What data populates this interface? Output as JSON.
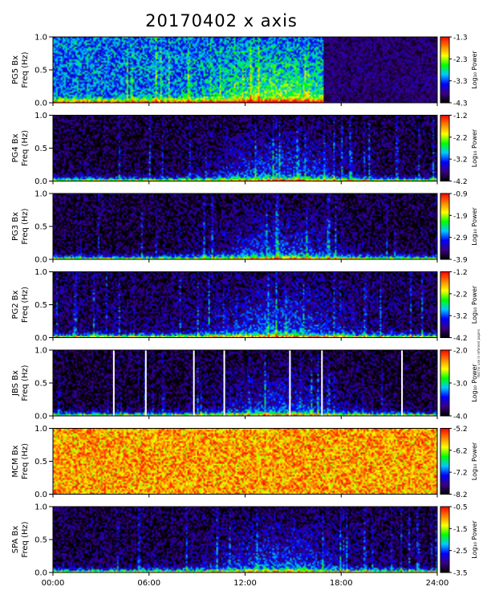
{
  "title": "20170402  x axis",
  "side_note": "Not for use in refereed papers",
  "chart_data": {
    "type": "heatmap",
    "title": "20170402  x axis",
    "x_ticks": [
      "00:00",
      "06:00",
      "12:00",
      "18:00",
      "24:00"
    ],
    "x_range_hours": [
      0,
      24
    ],
    "y_range_hz": [
      0.0,
      1.0
    ],
    "y_ticks": [
      "0.0",
      "0.5",
      "1.0"
    ],
    "colorbar_label": "Log₁₀ Power",
    "palette": [
      "#000000",
      "#3a0080",
      "#0000ff",
      "#00c8ff",
      "#00ff00",
      "#ffff00",
      "#ff8000",
      "#ff0000"
    ],
    "panels": [
      {
        "station": "PG5 Bx",
        "ylabel": "Freq (Hz)",
        "cbar_ticks": [
          "-1.3",
          "-2.3",
          "-3.3",
          "-4.3"
        ],
        "cbar_range": [
          -4.3,
          -1.3
        ],
        "data_gap_hours": [],
        "background_level": 0.35,
        "quiet_after_hour": 16.8
      },
      {
        "station": "PG4 Bx",
        "ylabel": "Freq (Hz)",
        "cbar_ticks": [
          "-1.2",
          "-2.2",
          "-3.2",
          "-4.2"
        ],
        "cbar_range": [
          -4.2,
          -1.2
        ],
        "data_gap_hours": [],
        "background_level": 0.05
      },
      {
        "station": "PG3 Bx",
        "ylabel": "Freq (Hz)",
        "cbar_ticks": [
          "-0.9",
          "-1.9",
          "-2.9",
          "-3.9"
        ],
        "cbar_range": [
          -3.9,
          -0.9
        ],
        "data_gap_hours": [],
        "background_level": 0.04
      },
      {
        "station": "PG2 Bx",
        "ylabel": "Freq (Hz)",
        "cbar_ticks": [
          "-1.2",
          "-2.2",
          "-3.2",
          "-4.2"
        ],
        "cbar_range": [
          -4.2,
          -1.2
        ],
        "data_gap_hours": [],
        "background_level": 0.08
      },
      {
        "station": "JBS Bx",
        "ylabel": "Freq (Hz)",
        "cbar_ticks": [
          "-2.0",
          "-3.0",
          "-4.0"
        ],
        "cbar_range": [
          -4.0,
          -2.0
        ],
        "data_gap_hours": [
          3.8,
          5.8,
          8.8,
          10.7,
          14.8,
          16.8,
          21.8
        ],
        "background_level": 0.03
      },
      {
        "station": "MCM Bx",
        "ylabel": "Freq (Hz)",
        "cbar_ticks": [
          "-5.2",
          "-6.2",
          "-7.2",
          "-8.2"
        ],
        "cbar_range": [
          -8.2,
          -5.2
        ],
        "data_gap_hours": [],
        "background_level": 0.82
      },
      {
        "station": "SPA Bx",
        "ylabel": "Freq (Hz)",
        "cbar_ticks": [
          "-0.5",
          "-1.5",
          "-2.5",
          "-3.5"
        ],
        "cbar_range": [
          -3.5,
          -0.5
        ],
        "data_gap_hours": [],
        "background_level": 0.06
      }
    ]
  }
}
